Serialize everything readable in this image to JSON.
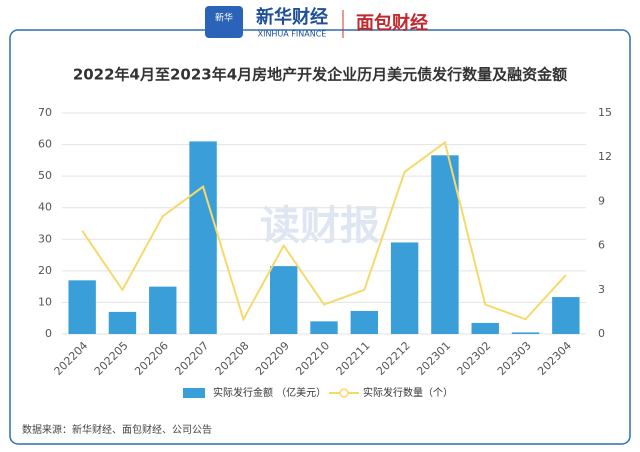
{
  "header": {
    "brand_cn": "新华财经",
    "brand_en": "XINHUA FINANCE",
    "brand2": "面包财经"
  },
  "watermark": "读财报",
  "chart_data": {
    "type": "bar",
    "title": "2022年4月至2023年4月房地产开发企业历月美元债发行数量及融资金额",
    "categories": [
      "202204",
      "202205",
      "202206",
      "202207",
      "202208",
      "202209",
      "202210",
      "202211",
      "202212",
      "202301",
      "202302",
      "202303",
      "202304"
    ],
    "series": [
      {
        "name": "实际发行金额 （亿美元）",
        "type": "bar",
        "color": "#3a9fd8",
        "values": [
          17,
          7,
          15,
          61,
          0,
          21.5,
          4,
          7.3,
          29,
          56.6,
          3.5,
          0.5,
          11.7
        ]
      },
      {
        "name": "实际发行数量（个）",
        "type": "line",
        "axis": "y2",
        "color": "#f7d96b",
        "values": [
          7,
          3,
          8,
          10,
          1,
          6,
          2,
          3,
          11,
          13,
          2,
          1,
          4
        ]
      }
    ],
    "ylim": [
      0,
      70
    ],
    "yticks": [
      0,
      10,
      20,
      30,
      40,
      50,
      60,
      70
    ],
    "y2lim": [
      0,
      15
    ],
    "y2ticks": [
      0,
      3,
      6,
      9,
      12,
      15
    ],
    "grid": true,
    "source": "数据来源：新华财经、面包财经、公司公告"
  }
}
